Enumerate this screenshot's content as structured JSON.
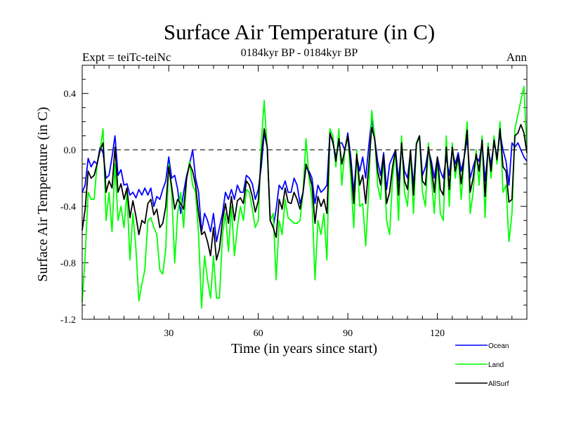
{
  "chart_data": {
    "type": "line",
    "title": "Surface Air Temperature (in C)",
    "subtitle": "0184kyr BP - 0184kyr BP",
    "left_label": "Expt = teiTc-teiNc",
    "right_label": "Ann",
    "xlabel": "Time (in years since start)",
    "ylabel": "Surface Air Temperature (in C)",
    "xlim": [
      1,
      150
    ],
    "ylim": [
      -1.2,
      0.6
    ],
    "x_ticks": [
      30,
      60,
      90,
      120
    ],
    "x_tick_labels": [
      "30",
      "60",
      "90",
      "120"
    ],
    "y_ticks": [
      -1.2,
      -0.8,
      -0.4,
      0.0,
      0.4
    ],
    "y_tick_labels": [
      "-1.2",
      "-0.8",
      "-0.4",
      "0.0",
      "0.4"
    ],
    "reference_line": 0.0,
    "x_start": 1,
    "series": [
      {
        "name": "Ocean",
        "color": "#0000ff",
        "values": [
          -0.3,
          -0.25,
          -0.06,
          -0.12,
          -0.08,
          -0.1,
          0.02,
          -0.02,
          -0.2,
          -0.18,
          -0.05,
          0.1,
          -0.18,
          -0.14,
          -0.25,
          -0.24,
          -0.32,
          -0.3,
          -0.34,
          -0.28,
          -0.32,
          -0.27,
          -0.32,
          -0.27,
          -0.4,
          -0.33,
          -0.35,
          -0.28,
          -0.22,
          -0.05,
          -0.2,
          -0.18,
          -0.28,
          -0.45,
          -0.3,
          -0.18,
          -0.1,
          0.0,
          -0.2,
          -0.3,
          -0.58,
          -0.45,
          -0.5,
          -0.58,
          -0.45,
          -0.65,
          -0.55,
          -0.45,
          -0.3,
          -0.35,
          -0.28,
          -0.35,
          -0.25,
          -0.3,
          -0.3,
          -0.18,
          -0.2,
          -0.24,
          -0.35,
          -0.28,
          -0.12,
          0.12,
          0.02,
          -0.5,
          -0.55,
          -0.42,
          -0.25,
          -0.28,
          -0.22,
          -0.3,
          -0.3,
          -0.2,
          -0.25,
          -0.38,
          -0.3,
          -0.12,
          -0.15,
          -0.2,
          -0.38,
          -0.25,
          -0.3,
          -0.28,
          -0.25,
          0.12,
          0.05,
          -0.05,
          0.05,
          0.05,
          0.0,
          0.12,
          -0.05,
          -0.3,
          -0.05,
          -0.15,
          -0.05,
          -0.2,
          0.02,
          0.22,
          0.08,
          -0.08,
          -0.18,
          -0.02,
          -0.28,
          -0.1,
          -0.05,
          0.0,
          -0.22,
          0.02,
          -0.15,
          -0.2,
          -0.02,
          -0.25,
          0.05,
          0.1,
          -0.18,
          -0.12,
          0.0,
          -0.08,
          -0.2,
          -0.05,
          -0.15,
          -0.2,
          -0.05,
          -0.18,
          0.0,
          -0.1,
          -0.02,
          -0.15,
          -0.05,
          0.08,
          -0.2,
          -0.12,
          -0.05,
          -0.08,
          0.05,
          -0.22,
          0.0,
          -0.1,
          0.05,
          -0.05,
          0.12,
          0.0,
          -0.08,
          -0.25,
          0.05,
          0.02,
          0.05,
          0.0,
          -0.05,
          -0.08
        ]
      },
      {
        "name": "Land",
        "color": "#00ff00",
        "values": [
          -1.08,
          -0.75,
          -0.3,
          -0.35,
          -0.35,
          -0.1,
          0.0,
          0.15,
          -0.5,
          -0.3,
          -0.58,
          -0.1,
          -0.5,
          -0.4,
          -0.55,
          -0.3,
          -0.78,
          -0.45,
          -0.7,
          -1.07,
          -0.95,
          -0.85,
          -0.5,
          -0.48,
          -0.55,
          -0.6,
          -0.85,
          -0.88,
          -0.7,
          -0.1,
          -0.3,
          -0.8,
          -0.45,
          -0.3,
          -0.55,
          -0.2,
          -0.08,
          -0.25,
          -0.3,
          -0.6,
          -1.12,
          -0.75,
          -0.92,
          -1.05,
          -0.75,
          -1.05,
          -1.05,
          -0.6,
          -0.45,
          -0.72,
          -0.4,
          -0.75,
          -0.55,
          -0.4,
          -0.5,
          -0.28,
          -0.3,
          -0.42,
          -0.55,
          -0.5,
          0.05,
          0.35,
          0.0,
          -0.5,
          -0.45,
          -0.92,
          -0.5,
          -0.6,
          -0.35,
          -0.48,
          -0.5,
          -0.52,
          -0.52,
          -0.5,
          -0.3,
          0.08,
          -0.2,
          -0.35,
          -0.92,
          -0.5,
          -0.6,
          -0.45,
          -0.78,
          0.15,
          0.1,
          -0.12,
          0.15,
          -0.25,
          0.0,
          0.1,
          -0.2,
          -0.55,
          0.0,
          -0.4,
          -0.38,
          -0.68,
          -0.3,
          0.28,
          0.1,
          -0.25,
          -0.35,
          -0.05,
          -0.5,
          -0.6,
          -0.2,
          0.0,
          -0.5,
          0.1,
          -0.3,
          -0.4,
          0.0,
          -0.45,
          0.05,
          0.1,
          -0.3,
          -0.4,
          0.05,
          -0.2,
          -0.45,
          -0.05,
          -0.45,
          -0.5,
          0.1,
          -0.4,
          0.05,
          -0.2,
          -0.05,
          -0.35,
          -0.05,
          0.2,
          -0.45,
          -0.3,
          0.0,
          -0.25,
          0.1,
          -0.48,
          0.05,
          -0.2,
          0.1,
          -0.1,
          0.2,
          -0.3,
          -0.25,
          -0.65,
          -0.45,
          0.15,
          0.25,
          0.35,
          0.45,
          0.0
        ]
      },
      {
        "name": "AllSurf",
        "color": "#000000",
        "values": [
          -0.57,
          -0.42,
          -0.15,
          -0.2,
          -0.18,
          -0.1,
          0.0,
          0.05,
          -0.3,
          -0.22,
          -0.27,
          0.02,
          -0.3,
          -0.24,
          -0.35,
          -0.27,
          -0.48,
          -0.36,
          -0.47,
          -0.6,
          -0.5,
          -0.52,
          -0.38,
          -0.35,
          -0.46,
          -0.42,
          -0.55,
          -0.52,
          -0.4,
          -0.12,
          -0.26,
          -0.42,
          -0.35,
          -0.38,
          -0.42,
          -0.2,
          -0.1,
          -0.15,
          -0.25,
          -0.45,
          -0.6,
          -0.58,
          -0.65,
          -0.75,
          -0.55,
          -0.78,
          -0.7,
          -0.5,
          -0.38,
          -0.52,
          -0.33,
          -0.5,
          -0.36,
          -0.34,
          -0.38,
          -0.22,
          -0.25,
          -0.33,
          -0.44,
          -0.36,
          -0.05,
          0.15,
          0.02,
          -0.5,
          -0.55,
          -0.62,
          -0.35,
          -0.42,
          -0.27,
          -0.37,
          -0.38,
          -0.3,
          -0.35,
          -0.42,
          -0.3,
          -0.1,
          -0.17,
          -0.25,
          -0.52,
          -0.33,
          -0.4,
          -0.35,
          -0.45,
          0.12,
          0.06,
          -0.08,
          0.08,
          -0.1,
          0.0,
          0.1,
          -0.1,
          -0.38,
          -0.03,
          -0.25,
          -0.18,
          -0.38,
          -0.12,
          0.16,
          0.08,
          -0.15,
          -0.25,
          -0.04,
          -0.38,
          -0.3,
          -0.12,
          0.0,
          -0.32,
          0.05,
          -0.22,
          -0.28,
          0.0,
          -0.32,
          0.04,
          0.1,
          -0.22,
          -0.25,
          0.02,
          -0.12,
          -0.3,
          -0.05,
          -0.28,
          -0.32,
          0.02,
          -0.28,
          0.02,
          -0.15,
          -0.04,
          -0.24,
          -0.05,
          0.14,
          -0.3,
          -0.2,
          -0.03,
          -0.15,
          0.07,
          -0.33,
          0.02,
          -0.15,
          0.07,
          -0.07,
          0.15,
          -0.12,
          -0.15,
          -0.37,
          -0.35,
          0.1,
          0.12,
          0.18,
          0.12,
          -0.02
        ]
      }
    ]
  }
}
